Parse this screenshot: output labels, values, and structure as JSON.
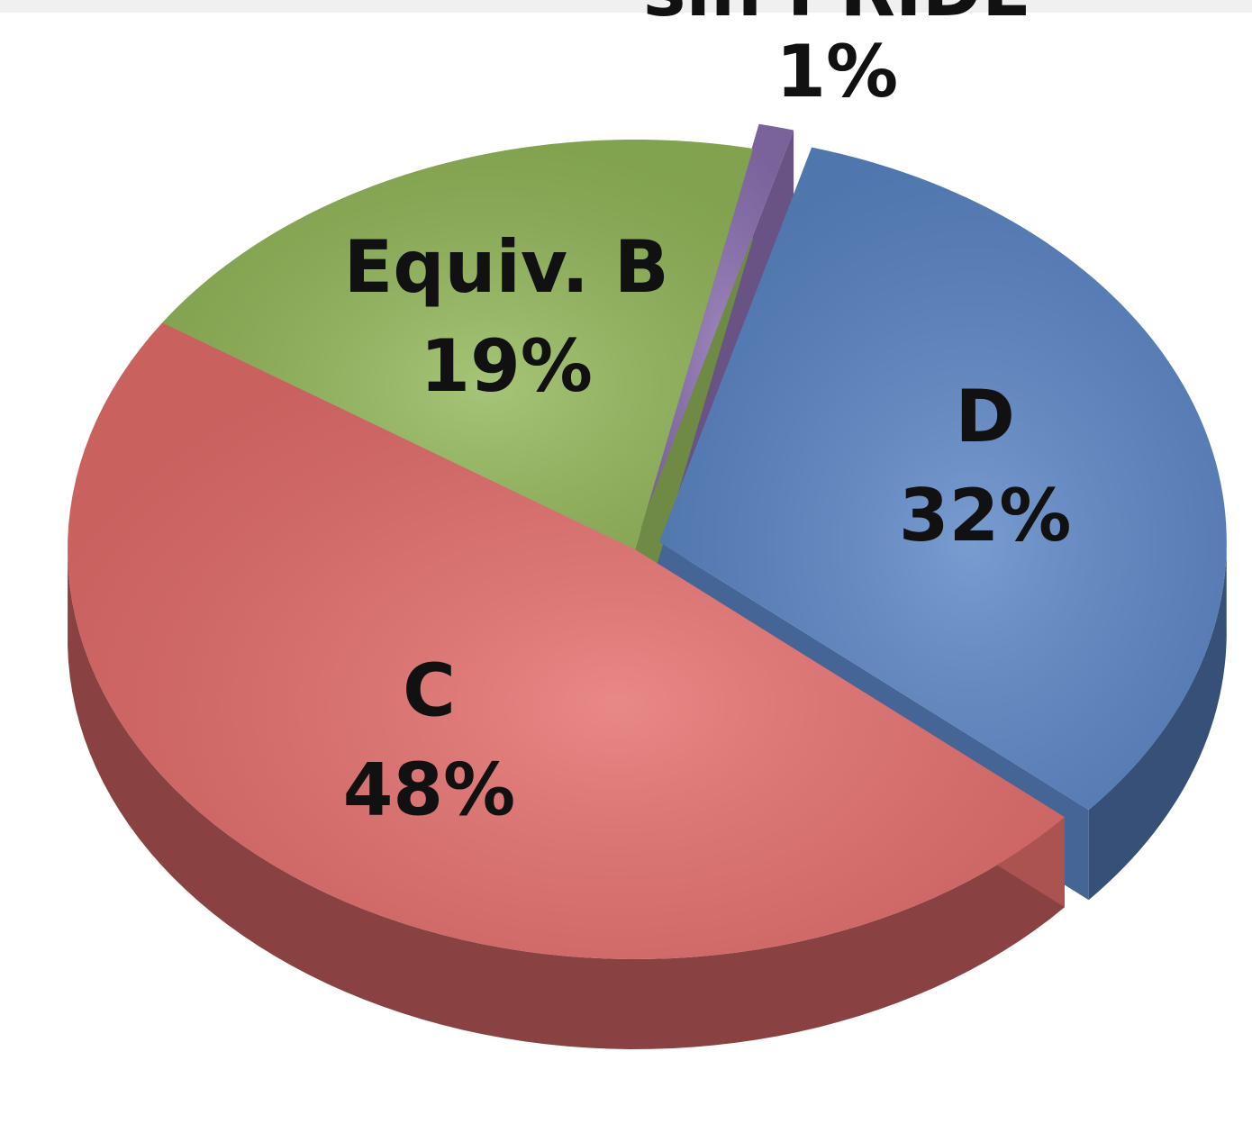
{
  "chart_data": {
    "type": "pie",
    "categories": [
      "sin PRIDE",
      "D",
      "C",
      "Equiv. B"
    ],
    "values": [
      1,
      32,
      48,
      19
    ],
    "value_labels": [
      "1%",
      "32%",
      "48%",
      "19%"
    ],
    "colors": [
      "#8a6fb0",
      "#5b86c6",
      "#e46e6c",
      "#93b85a"
    ]
  }
}
